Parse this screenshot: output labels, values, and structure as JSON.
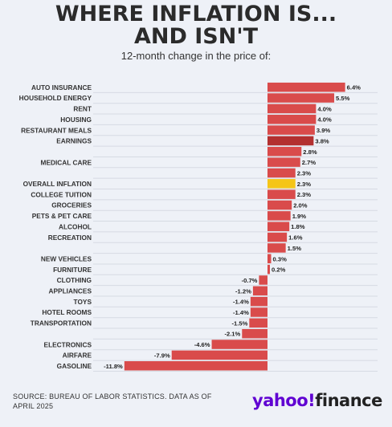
{
  "title": {
    "line1": "WHERE INFLATION IS...",
    "line2": "AND ISN'T"
  },
  "subtitle": "12-month change in the price of:",
  "footer": {
    "source": "SOURCE: BUREAU OF LABOR STATISTICS. DATA AS OF APRIL 2025"
  },
  "logo": {
    "brand": "yahoo!",
    "product": "finance"
  },
  "colors": {
    "bar": "#d94b4b",
    "earnings": "#b33030",
    "overall_inflation": "#f5c518",
    "grid": "#d6dae3",
    "background": "#eef1f7"
  },
  "chart_data": {
    "type": "bar",
    "orientation": "horizontal",
    "unit": "%",
    "xlim": [
      -11.8,
      6.4
    ],
    "categories": [
      "AUTO INSURANCE",
      "HOUSEHOLD ENERGY",
      "RENT",
      "HOUSING",
      "RESTAURANT MEALS",
      "EARNINGS",
      "",
      "MEDICAL CARE",
      "",
      "OVERALL INFLATION",
      "COLLEGE TUITION",
      "GROCERIES",
      "PETS & PET CARE",
      "ALCOHOL",
      "RECREATION",
      "",
      "NEW VEHICLES",
      "FURNITURE",
      "CLOTHING",
      "APPLIANCES",
      "TOYS",
      "HOTEL ROOMS",
      "TRANSPORTATION",
      "",
      "ELECTRONICS",
      "AIRFARE",
      "GASOLINE"
    ],
    "values": [
      6.4,
      5.5,
      4.0,
      4.0,
      3.9,
      3.8,
      2.8,
      2.7,
      2.3,
      2.3,
      2.3,
      2.0,
      1.9,
      1.8,
      1.6,
      1.5,
      0.3,
      0.2,
      -0.7,
      -1.2,
      -1.4,
      -1.4,
      -1.5,
      -2.1,
      -4.6,
      -7.9,
      -11.8
    ],
    "data_labels": [
      "6.4%",
      "5.5%",
      "4.0%",
      "4.0%",
      "3.9%",
      "3.8%",
      "2.8%",
      "2.7%",
      "2.3%",
      "2.3%",
      "2.3%",
      "2.0%",
      "1.9%",
      "1.8%",
      "1.6%",
      "1.5%",
      "0.3%",
      "0.2%",
      "-0.7%",
      "-1.2%",
      "-1.4%",
      "-1.4%",
      "-1.5%",
      "-2.1%",
      "-4.6%",
      "-7.9%",
      "-11.8%"
    ],
    "highlight": {
      "EARNINGS": "earnings",
      "OVERALL INFLATION": "overall_inflation"
    }
  }
}
